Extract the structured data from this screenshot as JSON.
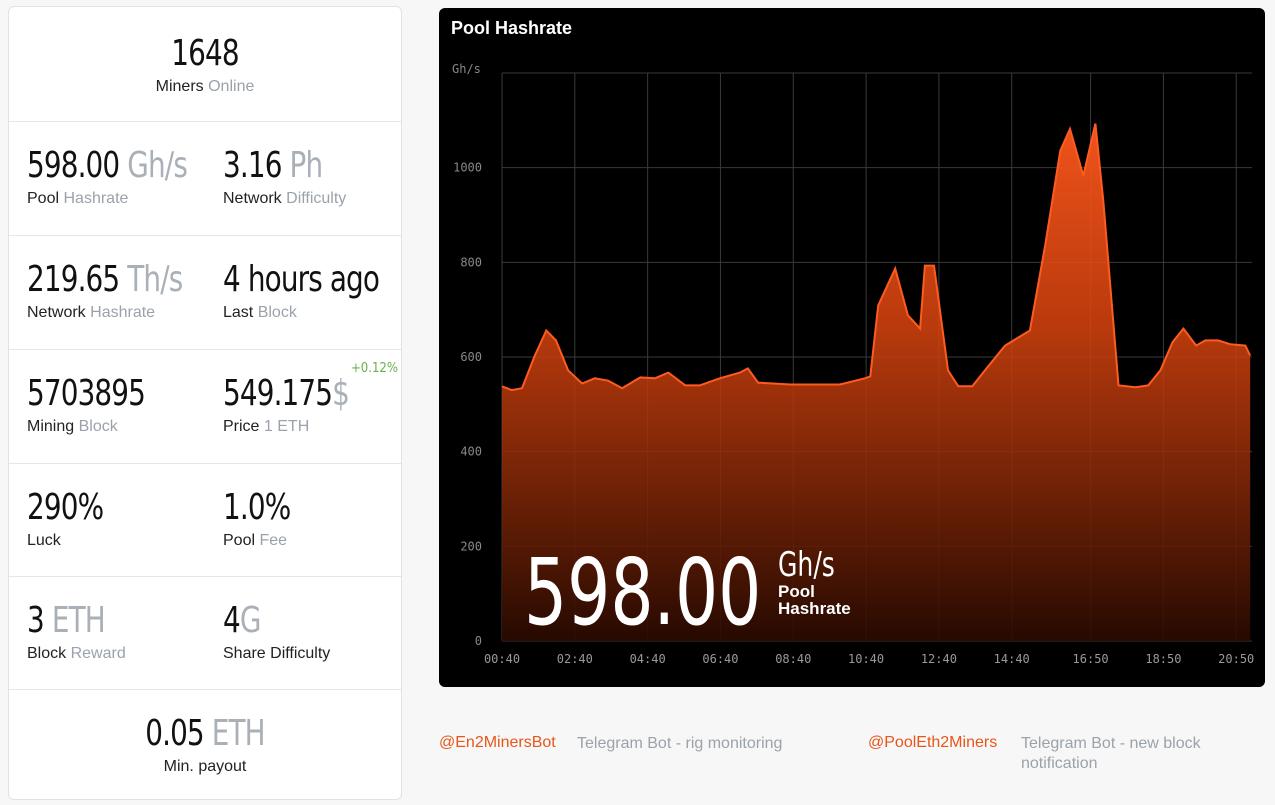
{
  "stats": [
    {
      "value": "1648",
      "label": "Miners",
      "label_muted": "Online"
    },
    {
      "value": "598.00",
      "unit": "Gh/s",
      "label": "Pool",
      "label_muted": "Hashrate"
    },
    {
      "value": "3.16",
      "unit": "Ph",
      "label": "Network",
      "label_muted": "Difficulty"
    },
    {
      "value": "219.65",
      "unit": "Th/s",
      "label": "Network",
      "label_muted": "Hashrate"
    },
    {
      "value": "4 hours ago",
      "label": "Last",
      "label_muted": "Block"
    },
    {
      "value": "5703895",
      "label": "Mining",
      "label_muted": "Block"
    },
    {
      "value": "549.175",
      "unit": "$",
      "change": "+0.12%",
      "label": "Price",
      "label_muted": "1 ETH"
    },
    {
      "value": "290%",
      "label": "Luck"
    },
    {
      "value": "1.0%",
      "label": "Pool",
      "label_muted": "Fee"
    },
    {
      "value": "3",
      "unit": "ETH",
      "label": "Block",
      "label_muted": "Reward"
    },
    {
      "value": "4",
      "unit": "G",
      "label": "Share Difficulty"
    },
    {
      "value": "0.05",
      "unit": "ETH",
      "label": "Min. payout"
    }
  ],
  "chart_data": {
    "type": "area",
    "title": "Pool Hashrate",
    "y_label": "Gh/s",
    "color": "#ff5a1f",
    "x": [
      40,
      56,
      73,
      94,
      113,
      129,
      149,
      172,
      193,
      215,
      238,
      268,
      292,
      314,
      342,
      366,
      399,
      432,
      445,
      462,
      515,
      597,
      638,
      647,
      660,
      688,
      709,
      729,
      737,
      752,
      775,
      792,
      815,
      836,
      869,
      910,
      935,
      960,
      976,
      998,
      1018,
      1031,
      1056,
      1084,
      1105,
      1125,
      1145,
      1163,
      1184,
      1199,
      1220,
      1240,
      1265,
      1273
    ],
    "values": [
      538,
      530,
      534,
      603,
      656,
      635,
      572,
      544,
      555,
      550,
      534,
      557,
      555,
      567,
      540,
      540,
      555,
      567,
      576,
      546,
      542,
      542,
      555,
      559,
      709,
      787,
      688,
      660,
      793,
      793,
      572,
      538,
      538,
      572,
      624,
      656,
      835,
      1036,
      1082,
      983,
      1093,
      930,
      540,
      536,
      540,
      572,
      631,
      660,
      624,
      635,
      635,
      627,
      624,
      603
    ],
    "xlim": [
      40,
      1276
    ],
    "xticks": [
      {
        "value": 40,
        "label": "00:40"
      },
      {
        "value": 160,
        "label": "02:40"
      },
      {
        "value": 280,
        "label": "04:40"
      },
      {
        "value": 400,
        "label": "06:40"
      },
      {
        "value": 520,
        "label": "08:40"
      },
      {
        "value": 640,
        "label": "10:40"
      },
      {
        "value": 760,
        "label": "12:40"
      },
      {
        "value": 880,
        "label": "14:40"
      },
      {
        "value": 1010,
        "label": "16:50"
      },
      {
        "value": 1130,
        "label": "18:50"
      },
      {
        "value": 1250,
        "label": "20:50"
      }
    ],
    "ylim": [
      0,
      1200
    ],
    "yticks": [
      0,
      200,
      400,
      600,
      800,
      1000
    ],
    "grid": true
  },
  "footer": [
    {
      "handle": "@En2MinersBot",
      "description": "Telegram Bot - rig monitoring"
    },
    {
      "handle": "@PoolEth2Miners",
      "description": "Telegram Bot - new block notification"
    }
  ]
}
